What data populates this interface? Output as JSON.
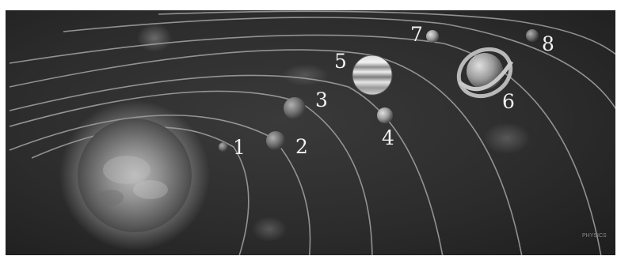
{
  "scene": {
    "background_color": "#2a2a2a",
    "sun_color": "#8a8a8a",
    "orbit_color": "#b4b4b4",
    "label_color": "#f2f2f2"
  },
  "planets": [
    {
      "label": "1",
      "name": "mercury"
    },
    {
      "label": "2",
      "name": "venus"
    },
    {
      "label": "3",
      "name": "earth"
    },
    {
      "label": "4",
      "name": "mars"
    },
    {
      "label": "5",
      "name": "jupiter"
    },
    {
      "label": "6",
      "name": "saturn"
    },
    {
      "label": "7",
      "name": "uranus"
    },
    {
      "label": "8",
      "name": "neptune"
    }
  ],
  "watermark": "PHYSICS"
}
